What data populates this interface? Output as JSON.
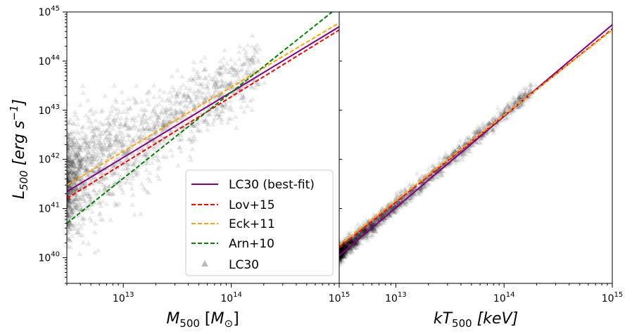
{
  "chart_data": [
    {
      "type": "scatter",
      "panel": "left",
      "xlabel": "M_500 [M_⊙]",
      "xlabel_parts": {
        "main": "M",
        "sub": "500",
        "unit_open": " [",
        "unit_main": "M",
        "unit_sub": "⊙",
        "unit_close": "]"
      },
      "ylabel_parts": {
        "main": "L",
        "sub": "500",
        "unit": " [erg s",
        "unit_exp": "−1",
        "unit_close": "]"
      },
      "xscale": "log",
      "yscale": "log",
      "xlim": [
        3000000000000.0,
        1000000000000000.0
      ],
      "ylim": [
        3e+39,
        1e+45
      ],
      "xticks": [
        {
          "value": 10000000000000.0,
          "base": "10",
          "exp": "13"
        },
        {
          "value": 100000000000000.0,
          "base": "10",
          "exp": "14"
        },
        {
          "value": 1000000000000000.0,
          "base": "10",
          "exp": "15"
        }
      ],
      "yticks": [
        {
          "value": 1e+40,
          "base": "10",
          "exp": "40"
        },
        {
          "value": 1e+41,
          "base": "10",
          "exp": "41"
        },
        {
          "value": 1e+42,
          "base": "10",
          "exp": "42"
        },
        {
          "value": 1e+43,
          "base": "10",
          "exp": "43"
        },
        {
          "value": 1e+44,
          "base": "10",
          "exp": "44"
        },
        {
          "value": 1e+45,
          "base": "10",
          "exp": "45"
        }
      ],
      "series": [
        {
          "name": "LC30 (best-fit)",
          "color": "#800080",
          "style": "solid",
          "x": [
            3000000000000.0,
            1000000000000000.0
          ],
          "y": [
            2.2e+41,
            5e+44
          ]
        },
        {
          "name": "Lov+15",
          "color": "#ff0000",
          "style": "dashed",
          "x": [
            3000000000000.0,
            1000000000000000.0
          ],
          "y": [
            1.6e+41,
            4.3e+44
          ]
        },
        {
          "name": "Eck+11",
          "color": "#ffa500",
          "style": "dashed",
          "x": [
            3000000000000.0,
            1000000000000000.0
          ],
          "y": [
            3e+41,
            6e+44
          ]
        },
        {
          "name": "Arn+10",
          "color": "#008000",
          "style": "dashed",
          "x": [
            3000000000000.0,
            860000000000000.0
          ],
          "y": [
            5e+40,
            1e+45
          ]
        }
      ],
      "scatter": {
        "name": "LC30",
        "color": "#000000",
        "marker": "triangle",
        "alpha": 0.08
      },
      "legend": {
        "placement": "lower right",
        "entries": [
          {
            "label": "LC30 (best-fit)",
            "color": "#800080",
            "style": "solid"
          },
          {
            "label": "Lov+15",
            "color": "#ff0000",
            "style": "dashed"
          },
          {
            "label": "Eck+11",
            "color": "#ffa500",
            "style": "dashed"
          },
          {
            "label": "Arn+10",
            "color": "#008000",
            "style": "dashed"
          },
          {
            "label": "LC30",
            "color": "#aaaaaa",
            "style": "marker"
          }
        ]
      }
    },
    {
      "type": "scatter",
      "panel": "right",
      "xlabel": "kT_500 [keV]",
      "xlabel_parts": {
        "main": "kT",
        "sub": "500",
        "unit": " [keV]"
      },
      "xscale": "log",
      "yscale": "log",
      "xlim": [
        3000000000000.0,
        1000000000000000.0
      ],
      "ylim": [
        3e+39,
        1e+45
      ],
      "xticks": [
        {
          "value": 10000000000000.0,
          "base": "10",
          "exp": "13"
        },
        {
          "value": 100000000000000.0,
          "base": "10",
          "exp": "14"
        },
        {
          "value": 1000000000000000.0,
          "base": "10",
          "exp": "15"
        }
      ],
      "series": [
        {
          "name": "LC30 (best-fit)",
          "color": "#800080",
          "style": "solid",
          "x": [
            3000000000000.0,
            1000000000000000.0
          ],
          "y": [
            1.1e+40,
            5.5e+44
          ]
        },
        {
          "name": "Lov+15",
          "color": "#ff0000",
          "style": "dashed",
          "x": [
            3000000000000.0,
            1000000000000000.0
          ],
          "y": [
            1.6e+40,
            4.5e+44
          ]
        },
        {
          "name": "Eck+11",
          "color": "#ffa500",
          "style": "dashed",
          "x": [
            3000000000000.0,
            1000000000000000.0
          ],
          "y": [
            1.8e+40,
            4.3e+44
          ]
        }
      ],
      "scatter": {
        "name": "LC30",
        "color": "#000000",
        "marker": "triangle",
        "alpha": 0.08
      }
    }
  ]
}
